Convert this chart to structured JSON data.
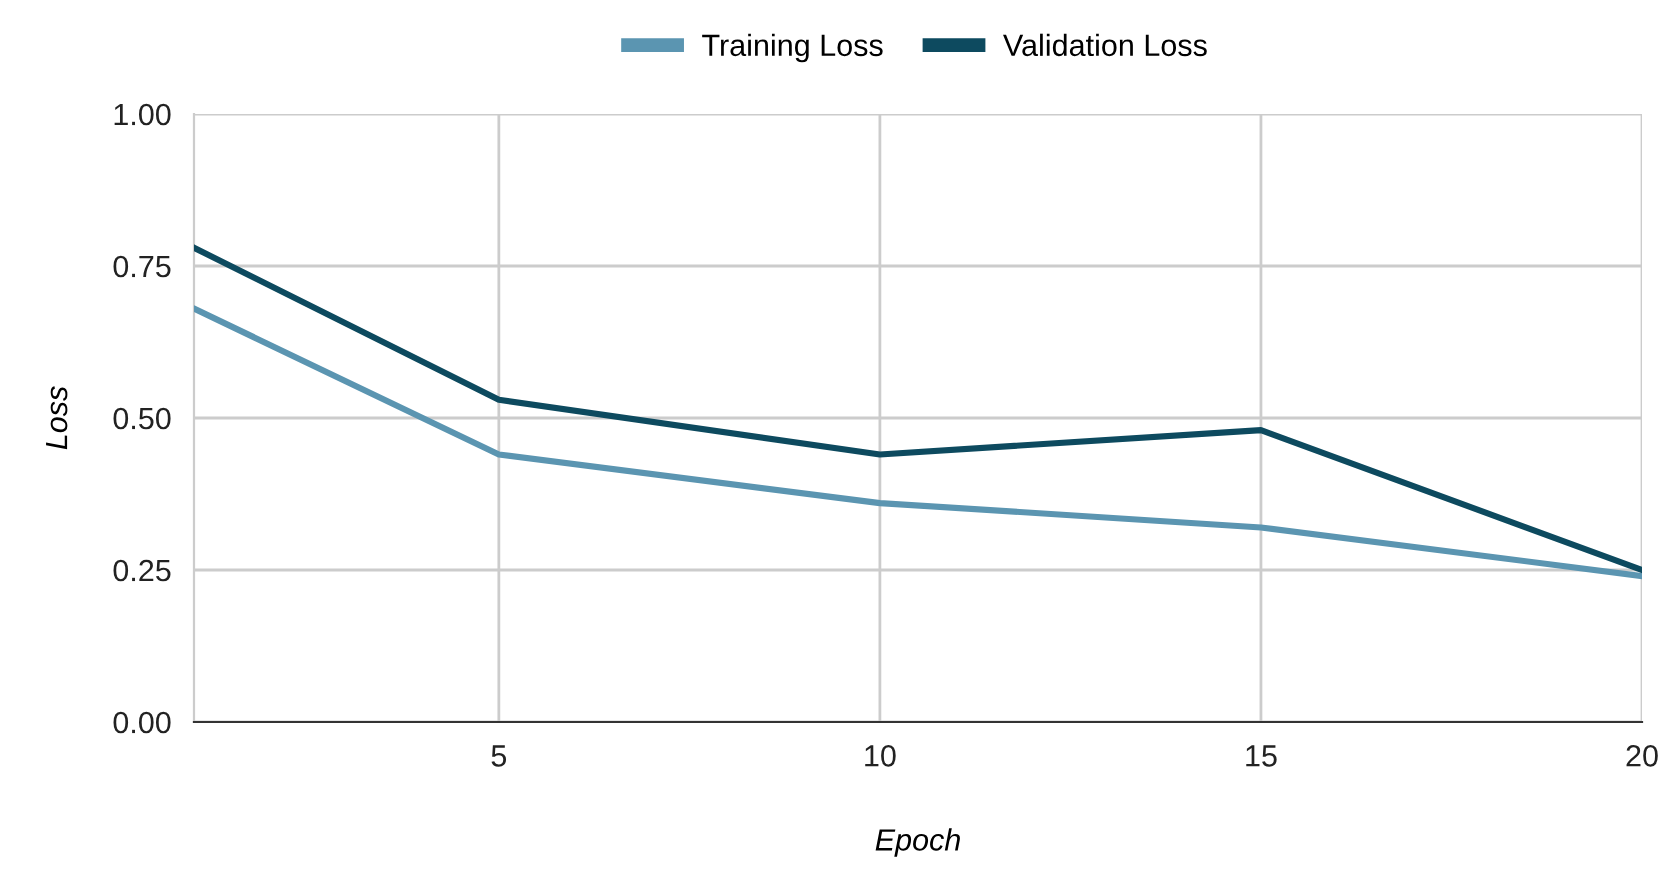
{
  "chart_data": {
    "type": "line",
    "xlabel": "Epoch",
    "ylabel": "Loss",
    "x": [
      1,
      5,
      10,
      15,
      20
    ],
    "series": [
      {
        "name": "Training Loss",
        "color": "#5b95b1",
        "values": [
          0.68,
          0.44,
          0.36,
          0.32,
          0.24
        ]
      },
      {
        "name": "Validation Loss",
        "color": "#0d4a5f",
        "values": [
          0.78,
          0.53,
          0.44,
          0.48,
          0.25
        ]
      }
    ],
    "xlim": [
      1,
      20
    ],
    "xticks": [
      5,
      10,
      15,
      20
    ],
    "ylim": [
      0,
      1
    ],
    "yticks": [
      {
        "value": 0,
        "label": "0.00"
      },
      {
        "value": 0.25,
        "label": "0.25"
      },
      {
        "value": 0.5,
        "label": "0.50"
      },
      {
        "value": 0.75,
        "label": "0.75"
      },
      {
        "value": 1,
        "label": "1.00"
      }
    ],
    "grid": true,
    "legend": "top",
    "marker": "none",
    "line_style": "solid"
  }
}
